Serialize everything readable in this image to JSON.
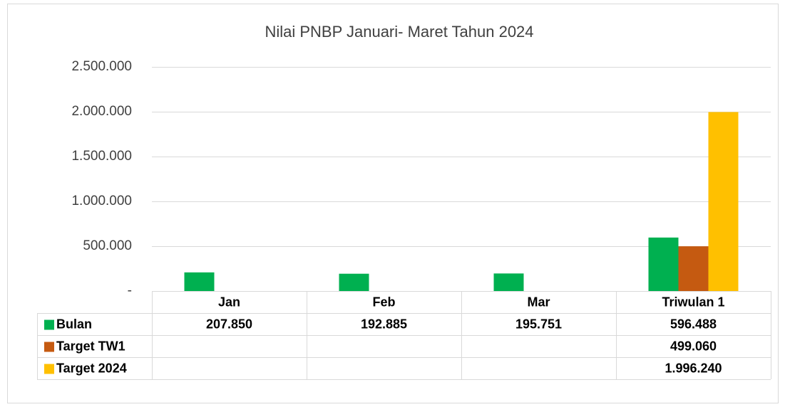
{
  "chart_data": {
    "type": "bar",
    "title": "Nilai PNBP Januari- Maret  Tahun 2024",
    "categories": [
      "Jan",
      "Feb",
      "Mar",
      "Triwulan 1"
    ],
    "series": [
      {
        "name": "Bulan",
        "color": "#00b050",
        "values": [
          207850,
          192885,
          195751,
          596488
        ],
        "value_labels": [
          "207.850",
          "192.885",
          "195.751",
          "596.488"
        ]
      },
      {
        "name": "Target TW1",
        "color": "#c55a11",
        "values": [
          null,
          null,
          null,
          499060
        ],
        "value_labels": [
          null,
          null,
          null,
          "499.060"
        ]
      },
      {
        "name": "Target 2024",
        "color": "#ffc000",
        "values": [
          null,
          null,
          null,
          1996240
        ],
        "value_labels": [
          null,
          null,
          null,
          "1.996.240"
        ]
      }
    ],
    "ylim": [
      0,
      2500000
    ],
    "yticks": [
      {
        "value": 0,
        "label": "-"
      },
      {
        "value": 500000,
        "label": "500.000"
      },
      {
        "value": 1000000,
        "label": "1.000.000"
      },
      {
        "value": 1500000,
        "label": "1.500.000"
      },
      {
        "value": 2000000,
        "label": "2.000.000"
      },
      {
        "value": 2500000,
        "label": "2.500.000"
      }
    ],
    "grid": true
  }
}
